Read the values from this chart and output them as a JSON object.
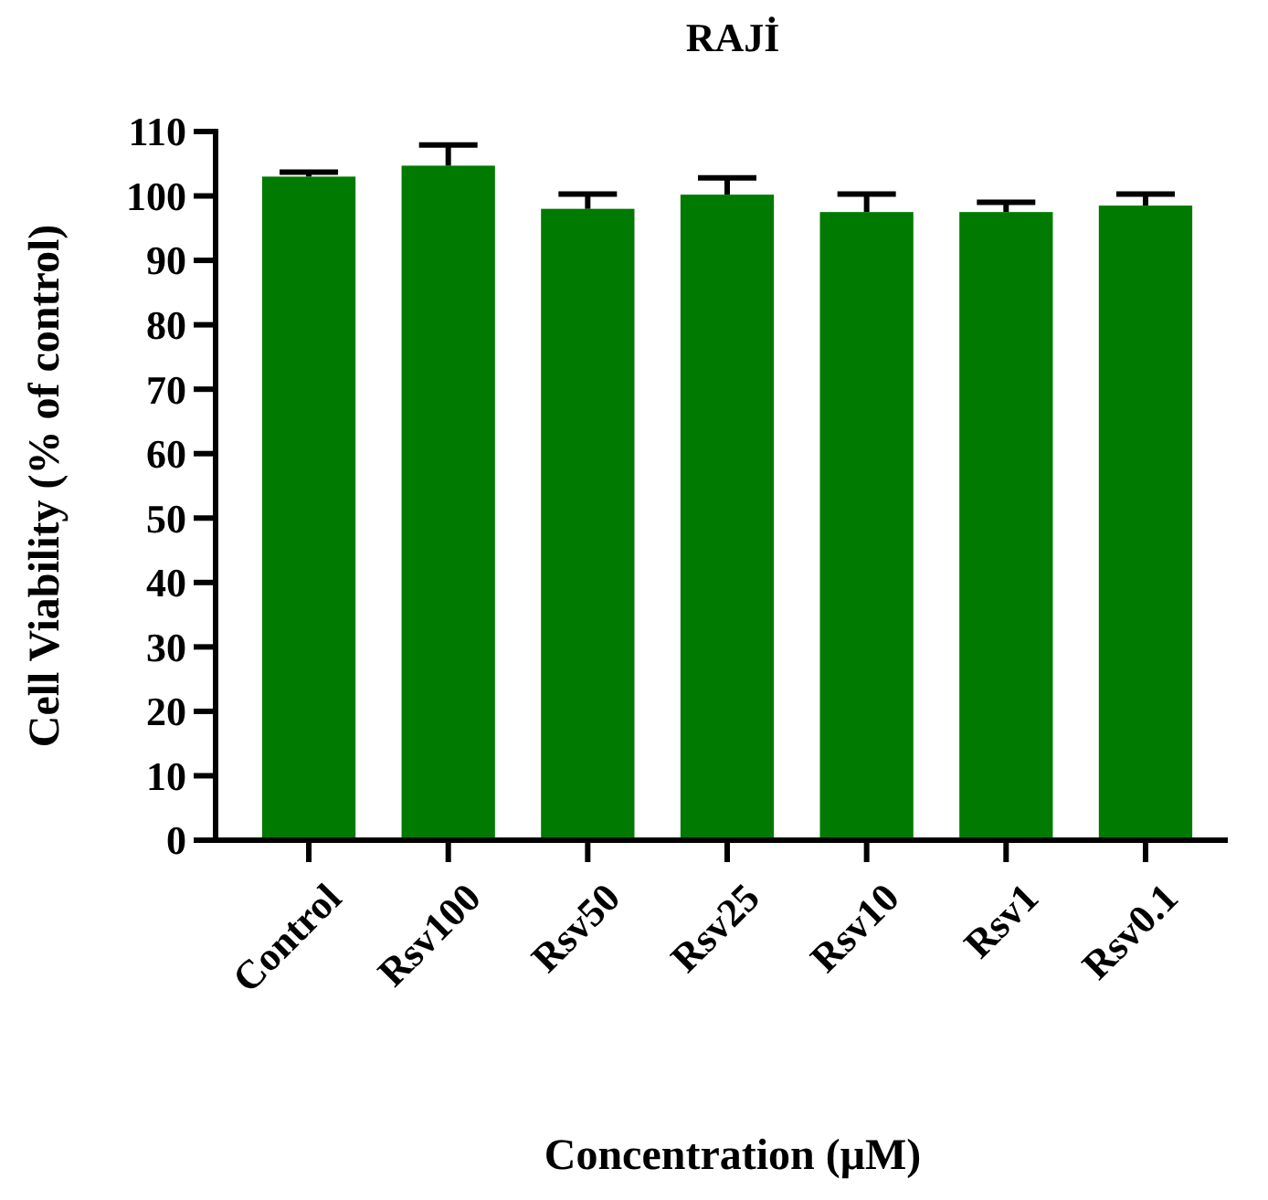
{
  "chart_data": {
    "type": "bar",
    "title": "RAJİ",
    "xlabel": "Concentration (μM)",
    "ylabel": "Cell Viability (% of control)",
    "categories": [
      "Control",
      "Rsv100",
      "Rsv50",
      "Rsv25",
      "Rsv10",
      "Rsv1",
      "Rsv0.1"
    ],
    "values": [
      103.0,
      104.7,
      98.0,
      100.2,
      97.5,
      97.5,
      98.5
    ],
    "errors": [
      0.7,
      3.2,
      2.3,
      2.6,
      2.8,
      1.5,
      1.8
    ],
    "color": "#007a00",
    "ylim": [
      0,
      110
    ],
    "yticks": [
      0,
      10,
      20,
      30,
      40,
      50,
      60,
      70,
      80,
      90,
      100,
      110
    ],
    "grid": false
  }
}
